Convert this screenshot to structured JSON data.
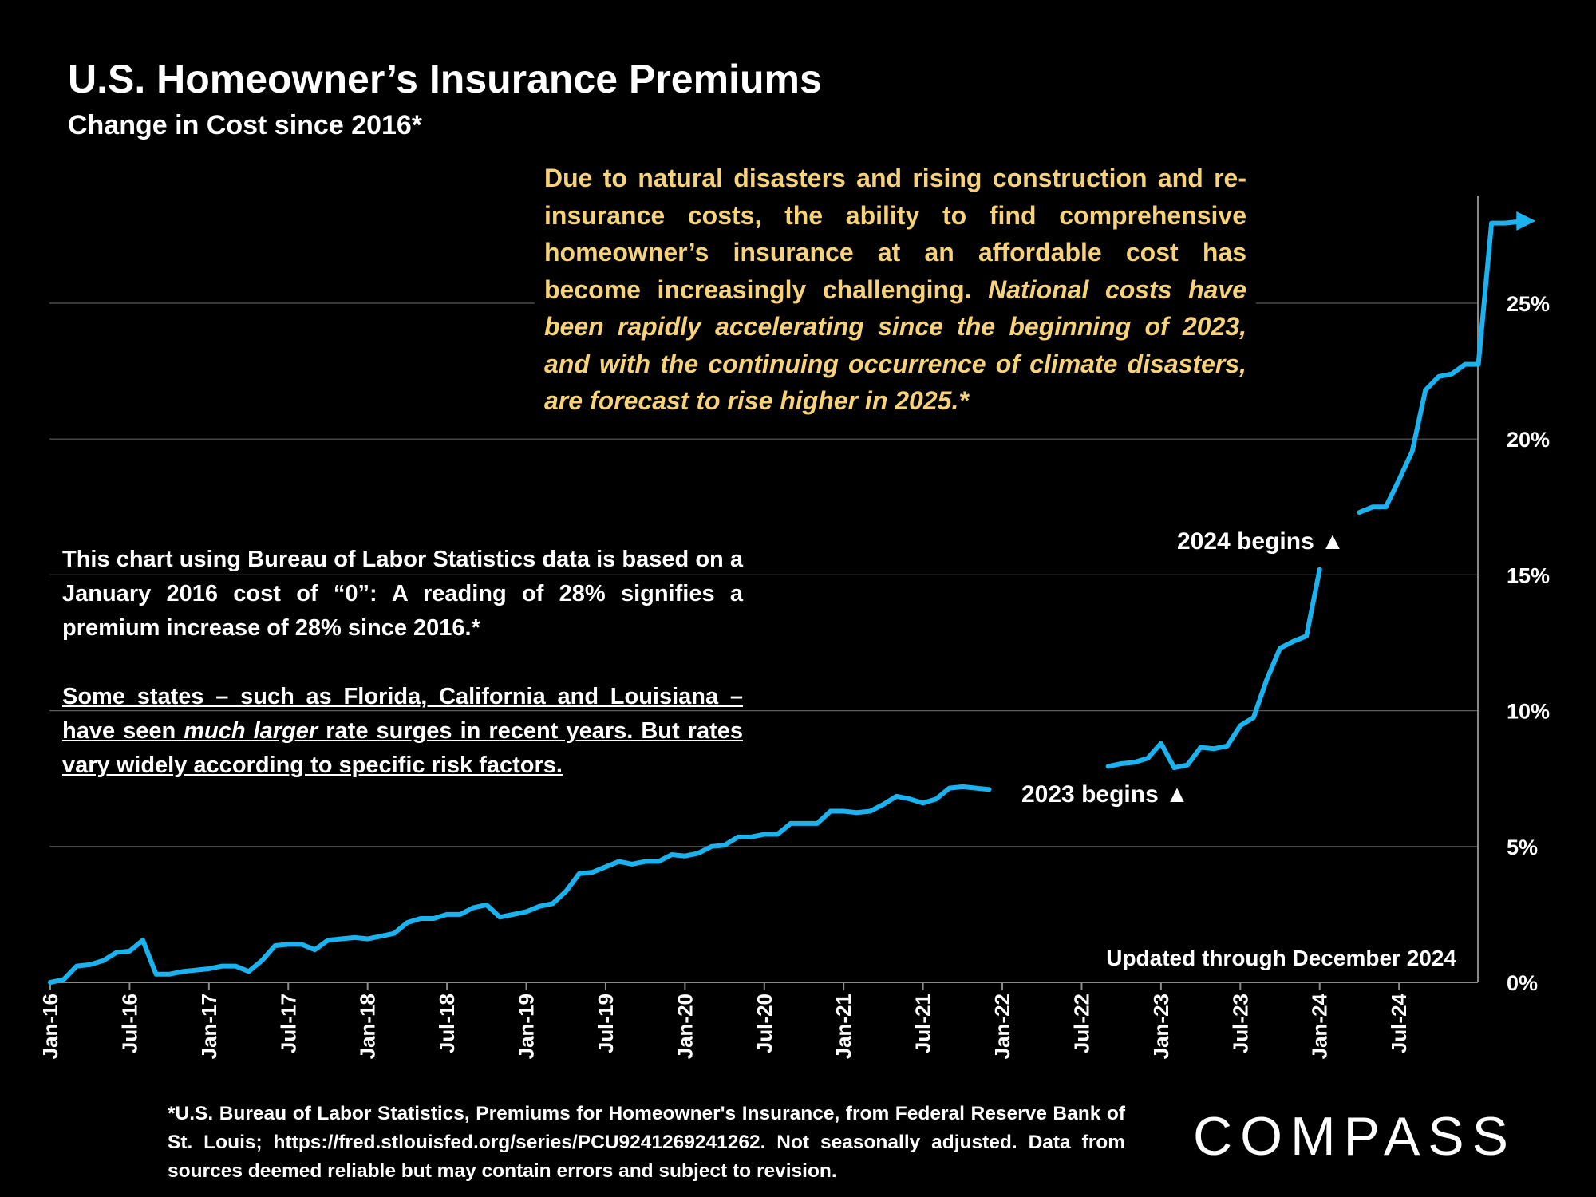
{
  "chart_data": {
    "type": "line",
    "title": "U.S. Homeowner’s Insurance Premiums",
    "subtitle": "Change in Cost since 2016*",
    "ylabel": "",
    "xlabel": "",
    "ylim": [
      0,
      29
    ],
    "yticks": [
      0,
      5,
      10,
      15,
      20,
      25
    ],
    "ytick_labels": [
      "0%",
      "5%",
      "10%",
      "15%",
      "20%",
      "25%"
    ],
    "xtick_labels": [
      "Jan-16",
      "Jul-16",
      "Jan-17",
      "Jul-17",
      "Jan-18",
      "Jul-18",
      "Jan-19",
      "Jul-19",
      "Jan-20",
      "Jul-20",
      "Jan-21",
      "Jul-21",
      "Jan-22",
      "Jul-22",
      "Jan-23",
      "Jul-23",
      "Jan-24",
      "Jul-24"
    ],
    "x_months_range": [
      0,
      107
    ],
    "series": [
      {
        "name": "Homeowner's insurance premium change since Jan 2016 (%)",
        "color": "#1ab3f0",
        "values": [
          0.0,
          0.1,
          0.6,
          0.65,
          0.8,
          1.1,
          1.15,
          1.55,
          0.3,
          0.3,
          0.4,
          0.45,
          0.5,
          0.6,
          0.6,
          0.4,
          0.8,
          1.35,
          1.4,
          1.4,
          1.2,
          1.55,
          1.6,
          1.65,
          1.6,
          1.7,
          1.8,
          2.2,
          2.35,
          2.35,
          2.5,
          2.5,
          2.75,
          2.85,
          2.4,
          2.5,
          2.6,
          2.8,
          2.9,
          3.35,
          4.0,
          4.05,
          4.25,
          4.45,
          4.35,
          4.45,
          4.45,
          4.7,
          4.65,
          4.75,
          5.0,
          5.05,
          5.35,
          5.35,
          5.45,
          5.45,
          5.85,
          5.85,
          5.85,
          6.3,
          6.3,
          6.25,
          6.3,
          6.55,
          6.85,
          6.75,
          6.6,
          6.75,
          7.15,
          7.2,
          7.15,
          7.1,
          null,
          null,
          null,
          null,
          null,
          null,
          null,
          null,
          7.95,
          8.05,
          8.1,
          8.25,
          8.8,
          7.9,
          8.0,
          8.65,
          8.6,
          8.7,
          9.45,
          9.75,
          11.15,
          12.3,
          12.55,
          12.75,
          15.2,
          null,
          null,
          17.3,
          17.5,
          17.5,
          18.5,
          19.55,
          21.8,
          22.3,
          22.4,
          22.75,
          22.75,
          27.95,
          27.95,
          28.0
        ],
        "arrow_end": true
      }
    ],
    "annotations": {
      "main_text": "Due to natural disasters and rising construction and re-insurance costs, the ability to find comprehensive homeowner’s insurance at an affordable cost has become increasingly challenging.",
      "main_text_italic": "National costs have been rapidly accelerating since the beginning of 2023, and with the continuing occurrence of climate disasters, are forecast to rise higher in 2025.*",
      "begins_2023": "2023 begins ▲",
      "begins_2024": "2024 begins ▲",
      "updated": "Updated through December 2024"
    }
  },
  "note": {
    "p1": "This chart using Bureau of Labor Statistics data is based on a January 2016 cost of “0”: A reading of 28% signifies a premium increase of 28% since 2016.*",
    "p2_before": "Some states – such as Florida, California and Louisiana – have seen ",
    "p2_italic": "much larger",
    "p2_after": " rate surges in recent years. But rates vary widely according to specific risk factors."
  },
  "footnote": "*U.S. Bureau of Labor Statistics, Premiums for Homeowner's Insurance, from Federal Reserve Bank of St. Louis; https://fred.stlouisfed.org/series/PCU9241269241262. Not seasonally adjusted. Data from sources deemed reliable but may contain errors and subject to revision.",
  "logo": "COMPASS"
}
